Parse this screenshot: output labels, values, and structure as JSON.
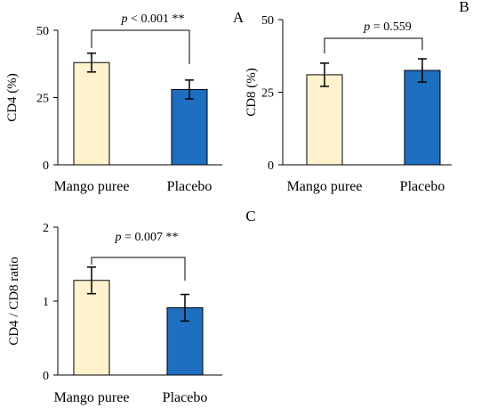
{
  "chart_data": [
    {
      "type": "bar",
      "panel": "A",
      "categories": [
        "Mango puree",
        "Placebo"
      ],
      "values": [
        38,
        28
      ],
      "errors": [
        3.5,
        3.5
      ],
      "colors": [
        "#FFF2CC",
        "#1F6FC0"
      ],
      "ylabel": "CD4 (%)",
      "ylim": [
        0,
        50
      ],
      "yticks": [
        "0",
        "25",
        "50"
      ],
      "annotation": {
        "p_symbol": "p",
        "p_text": " < 0.001 **"
      },
      "grid": false
    },
    {
      "type": "bar",
      "panel": "B",
      "categories": [
        "Mango puree",
        "Placebo"
      ],
      "values": [
        31,
        32.5
      ],
      "errors": [
        4,
        4
      ],
      "colors": [
        "#FFF2CC",
        "#1F6FC0"
      ],
      "ylabel": "CD8 (%)",
      "ylim": [
        0,
        50
      ],
      "yticks": [
        "0",
        "25",
        "50"
      ],
      "annotation": {
        "p_symbol": "p",
        "p_text": " = 0.559"
      },
      "grid": false
    },
    {
      "type": "bar",
      "panel": "C",
      "categories": [
        "Mango puree",
        "Placebo"
      ],
      "values": [
        1.28,
        0.91
      ],
      "errors": [
        0.18,
        0.18
      ],
      "colors": [
        "#FFF2CC",
        "#1F6FC0"
      ],
      "ylabel": "CD4 / CD8 ratio",
      "ylim": [
        0,
        2
      ],
      "yticks": [
        "0",
        "1",
        "2"
      ],
      "annotation": {
        "p_symbol": "p",
        "p_text": " = 0.007 **"
      },
      "grid": false
    }
  ]
}
